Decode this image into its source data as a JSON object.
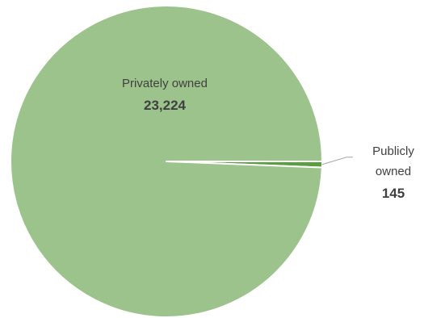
{
  "chart_data": {
    "type": "pie",
    "title": "",
    "slices": [
      {
        "label": "Privately owned",
        "value": 23224,
        "value_label": "23,224",
        "color": "#9dc38c"
      },
      {
        "label": "Publicly owned",
        "value": 145,
        "value_label": "145",
        "color": "#5a9e42"
      }
    ],
    "legend": "none",
    "leader_line_color": "#a6a6a6"
  },
  "labels": {
    "private_name": "Privately owned",
    "private_value": "23,224",
    "public_name_line1": "Publicly",
    "public_name_line2": "owned",
    "public_value": "145"
  }
}
